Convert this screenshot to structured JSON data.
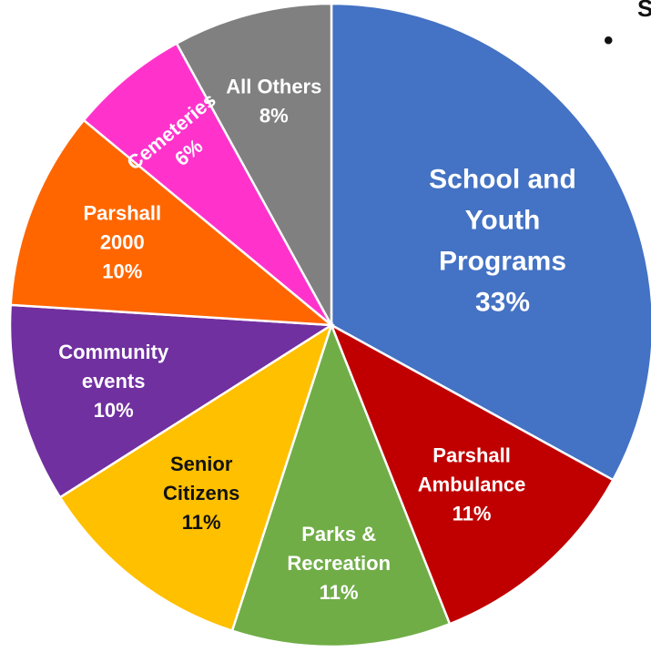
{
  "chart_data": {
    "type": "pie",
    "title": "",
    "slices": [
      {
        "label": [
          "School and",
          "Youth",
          "Programs",
          "33%"
        ],
        "value": 33,
        "color": "#4472C4"
      },
      {
        "label": [
          "Parshall",
          "Ambulance",
          "11%"
        ],
        "value": 11,
        "color": "#C00000"
      },
      {
        "label": [
          "Parks &",
          "Recreation",
          "11%"
        ],
        "value": 11,
        "color": "#70AD47"
      },
      {
        "label": [
          "Senior",
          "Citizens",
          "11%"
        ],
        "value": 11,
        "color": "#FFC000",
        "dark_text": true
      },
      {
        "label": [
          "Community",
          "events",
          "10%"
        ],
        "value": 10,
        "color": "#7030A0"
      },
      {
        "label": [
          "Parshall",
          "2000",
          "10%"
        ],
        "value": 10,
        "color": "#FF6600"
      },
      {
        "label": [
          "Cemeteries",
          "6%"
        ],
        "value": 6,
        "color": "#FF33CC",
        "rotated": true
      },
      {
        "label": [
          "All Others",
          "8%"
        ],
        "value": 8,
        "color": "#808080"
      }
    ]
  },
  "edge_fragment": {
    "top_right_char": "S",
    "bullet": "•"
  }
}
